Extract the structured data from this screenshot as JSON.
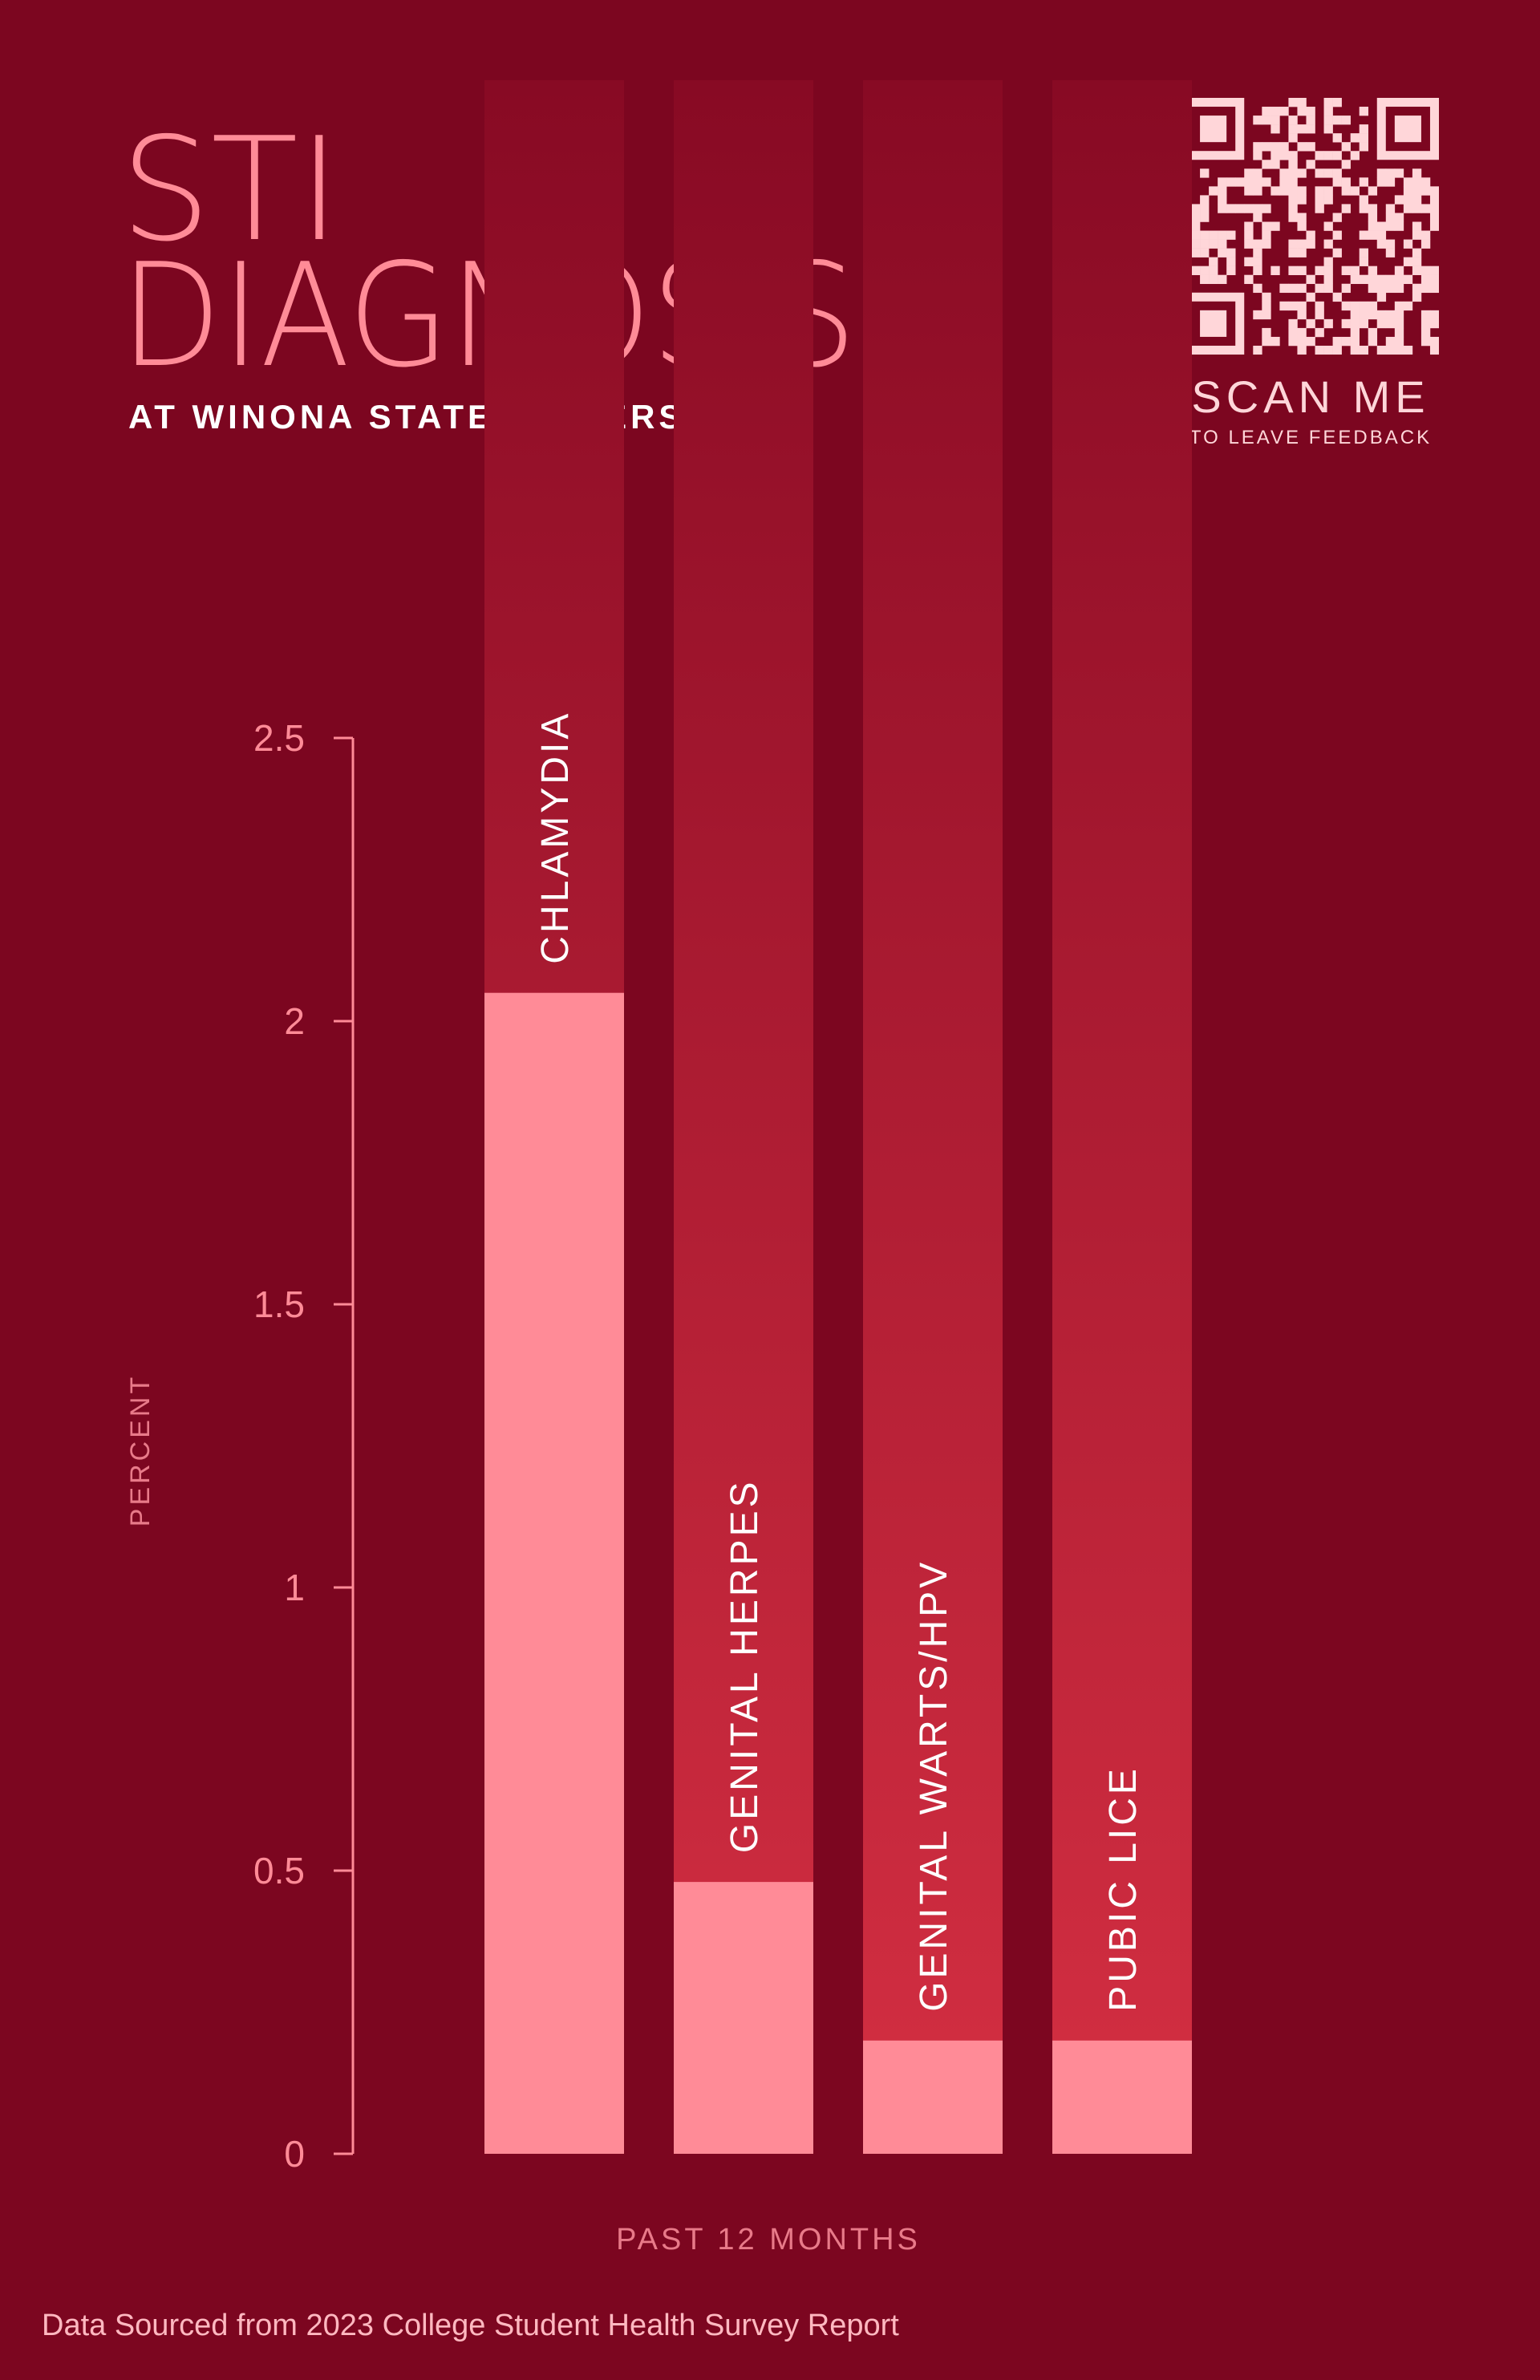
{
  "header": {
    "title_line_1": "STI",
    "title_line_2": "DIAGNOSIS",
    "subtitle": "AT WINONA STATE UNIVERSITY"
  },
  "qr": {
    "label": "SCAN ME",
    "sublabel": "TO LEAVE FEEDBACK"
  },
  "colors": {
    "background": "#7c0620",
    "column_top": "#880a24",
    "column_bottom": "#d42f42",
    "bar": "#ff8b97",
    "title": "#ff8b97",
    "axis": "#ff8b97",
    "qr_fg": "#ffd6d9"
  },
  "chart_data": {
    "type": "bar",
    "orientation": "vertical",
    "categories": [
      "CHLAMYDIA",
      "GENITAL HERPES",
      "GENITAL WARTS/HPV",
      "PUBIC LICE"
    ],
    "values": [
      2.05,
      0.48,
      0.2,
      0.2
    ],
    "xlabel": "PAST 12 MONTHS",
    "ylabel": "PERCENT",
    "ylim": [
      0,
      2.5
    ],
    "yticks": [
      0,
      0.5,
      1,
      1.5,
      2,
      2.5
    ],
    "ytick_labels": [
      "0",
      "0.5",
      "1",
      "1.5",
      "2",
      "2.5"
    ],
    "legend": "none",
    "grid": false
  },
  "footer": {
    "source": "Data Sourced from 2023 College Student Health Survey Report"
  }
}
